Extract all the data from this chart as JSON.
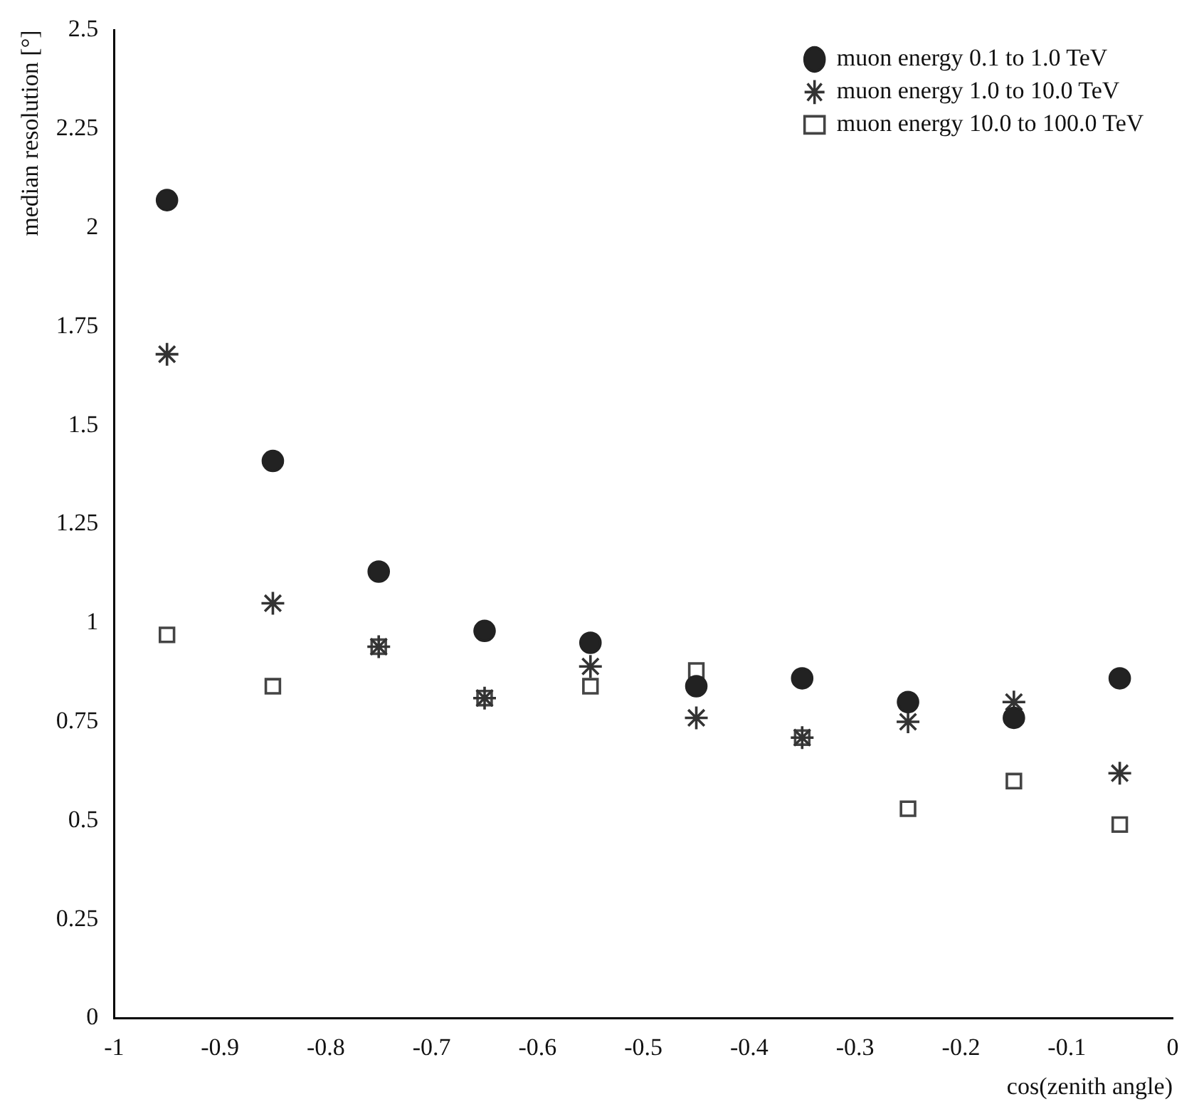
{
  "chart_data": {
    "type": "scatter",
    "xlabel": "cos(zenith angle)",
    "ylabel": "median resolution [°]",
    "x": [
      -0.95,
      -0.85,
      -0.75,
      -0.65,
      -0.55,
      -0.45,
      -0.35,
      -0.25,
      -0.15,
      -0.05
    ],
    "series": [
      {
        "name": "muon energy 0.1 to 1.0 TeV",
        "color": "#222222",
        "marker": "circle",
        "values": [
          2.07,
          1.41,
          1.13,
          0.98,
          0.95,
          0.84,
          0.86,
          0.8,
          0.76,
          0.86
        ]
      },
      {
        "name": "muon energy 1.0 to 10.0 TeV",
        "color": "#333333",
        "marker": "cross",
        "values": [
          1.68,
          1.05,
          0.94,
          0.81,
          0.89,
          0.76,
          0.71,
          0.75,
          0.8,
          0.62
        ]
      },
      {
        "name": "muon energy 10.0 to 100.0 TeV",
        "color": "#444444",
        "marker": "square",
        "values": [
          0.97,
          0.84,
          0.94,
          0.81,
          0.84,
          0.88,
          0.71,
          0.53,
          0.6,
          0.49
        ]
      }
    ],
    "xlim": [
      -1,
      0
    ],
    "xticks": [
      -1,
      -0.9,
      -0.8,
      -0.7,
      -0.6,
      -0.5,
      -0.4,
      -0.3,
      -0.2,
      -0.1,
      0
    ],
    "ylim": [
      0,
      2.5
    ],
    "yticks": [
      0,
      0.25,
      0.5,
      0.75,
      1,
      1.25,
      1.5,
      1.75,
      2,
      2.25,
      2.5
    ],
    "legend": "top right",
    "grid": false
  }
}
